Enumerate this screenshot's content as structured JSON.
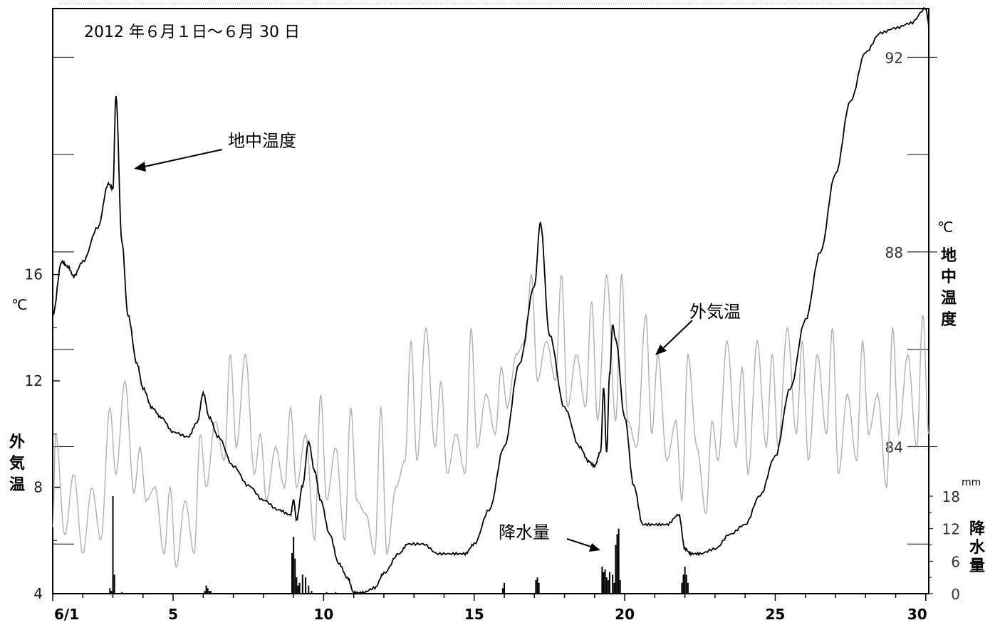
{
  "chart_data": {
    "type": "line",
    "title": "",
    "period_label": "2012 年６月１日～６月 30 日",
    "x_axis": {
      "ticks": [
        {
          "day": 1,
          "label": "6/1"
        },
        {
          "day": 5,
          "label": "5"
        },
        {
          "day": 10,
          "label": "10"
        },
        {
          "day": 15,
          "label": "15"
        },
        {
          "day": 20,
          "label": "20"
        },
        {
          "day": 25,
          "label": "25"
        },
        {
          "day": 30,
          "label": "30"
        }
      ],
      "xlim": [
        1,
        30.1
      ]
    },
    "y_left": {
      "label": "外気温",
      "unit": "℃",
      "ylim": [
        4,
        26
      ],
      "ticks": [
        4,
        8,
        12,
        16
      ]
    },
    "y_right_temp": {
      "label": "地中温度",
      "unit": "℃",
      "ylim": [
        80.98,
        93.0
      ],
      "ticks": [
        84,
        88,
        92
      ]
    },
    "y_right_precip": {
      "label": "降水量",
      "unit": "mm",
      "ylim": [
        0,
        18
      ],
      "ticks": [
        0,
        6,
        12,
        18
      ]
    },
    "series": [
      {
        "name": "地中温度",
        "axis": "right_temp",
        "color": "#000000",
        "x": [
          1.0,
          1.3,
          1.5,
          1.7,
          2.0,
          2.5,
          2.85,
          3.0,
          3.1,
          3.3,
          3.5,
          3.8,
          4.0,
          4.3,
          4.6,
          5.0,
          5.5,
          5.8,
          6.0,
          6.2,
          6.5,
          7.0,
          7.5,
          8.0,
          8.5,
          8.9,
          9.0,
          9.1,
          9.3,
          9.5,
          9.7,
          9.9,
          10.2,
          10.5,
          10.8,
          11.0,
          11.3,
          11.7,
          12.0,
          12.5,
          12.8,
          13.3,
          13.8,
          14.3,
          14.7,
          15.0,
          15.5,
          16.0,
          16.5,
          17.0,
          17.2,
          17.5,
          18.0,
          18.5,
          18.8,
          19.0,
          19.2,
          19.3,
          19.4,
          19.5,
          19.6,
          19.7,
          20.0,
          20.3,
          20.6,
          21.0,
          21.4,
          21.8,
          22.0,
          22.2,
          22.5,
          23.0,
          23.5,
          24.0,
          24.5,
          25.0,
          25.5,
          26.0,
          26.5,
          27.0,
          27.5,
          28.0,
          28.5,
          29.0,
          29.5,
          30.0,
          30.1
        ],
        "values": [
          86.7,
          87.8,
          87.7,
          87.5,
          87.8,
          88.5,
          89.4,
          89.3,
          91.2,
          88.2,
          86.7,
          85.7,
          85.2,
          84.8,
          84.6,
          84.3,
          84.2,
          84.5,
          85.1,
          84.6,
          84.2,
          83.6,
          83.2,
          82.9,
          82.7,
          82.6,
          82.9,
          82.5,
          83.2,
          84.1,
          83.5,
          82.9,
          82.2,
          81.6,
          81.3,
          81.0,
          81.0,
          81.1,
          81.4,
          81.8,
          82.0,
          82.0,
          81.8,
          81.8,
          81.8,
          82.0,
          82.7,
          84.0,
          85.7,
          87.3,
          88.6,
          86.3,
          84.8,
          84.0,
          83.7,
          83.6,
          83.9,
          85.2,
          83.9,
          85.5,
          86.5,
          86.2,
          84.6,
          83.2,
          82.4,
          82.4,
          82.4,
          82.6,
          81.9,
          81.8,
          81.8,
          81.9,
          82.2,
          82.4,
          83.0,
          83.8,
          85.2,
          86.6,
          88.0,
          89.6,
          91.1,
          92.1,
          92.5,
          92.6,
          92.7,
          93.0,
          92.7
        ]
      },
      {
        "name": "外気温",
        "axis": "left",
        "color": "#b0b0b0",
        "x": [
          1.0,
          1.1,
          1.4,
          1.7,
          2.0,
          2.3,
          2.6,
          2.9,
          3.1,
          3.4,
          3.7,
          3.9,
          4.1,
          4.4,
          4.7,
          4.9,
          5.1,
          5.4,
          5.7,
          5.9,
          6.1,
          6.4,
          6.7,
          6.9,
          7.1,
          7.4,
          7.7,
          7.9,
          8.1,
          8.4,
          8.7,
          8.9,
          9.1,
          9.4,
          9.7,
          9.9,
          10.1,
          10.4,
          10.7,
          10.9,
          11.1,
          11.4,
          11.7,
          11.9,
          12.1,
          12.4,
          12.7,
          12.9,
          13.1,
          13.4,
          13.7,
          13.9,
          14.1,
          14.4,
          14.7,
          14.9,
          15.1,
          15.4,
          15.7,
          15.9,
          16.1,
          16.4,
          16.7,
          16.9,
          17.1,
          17.4,
          17.7,
          17.9,
          18.1,
          18.4,
          18.7,
          18.9,
          19.1,
          19.4,
          19.7,
          19.9,
          20.1,
          20.4,
          20.7,
          20.9,
          21.1,
          21.4,
          21.7,
          21.9,
          22.1,
          22.4,
          22.7,
          22.9,
          23.1,
          23.4,
          23.7,
          23.9,
          24.1,
          24.4,
          24.7,
          24.9,
          25.1,
          25.4,
          25.7,
          25.9,
          26.1,
          26.4,
          26.7,
          26.9,
          27.1,
          27.4,
          27.7,
          27.9,
          28.1,
          28.4,
          28.7,
          28.9,
          29.1,
          29.4,
          29.7,
          29.9,
          30.1
        ],
        "values": [
          6.5,
          10.0,
          6.2,
          8.5,
          5.5,
          8.0,
          6.0,
          11.0,
          8.5,
          12.0,
          7.8,
          9.5,
          7.5,
          8.0,
          5.5,
          8.0,
          5.0,
          7.5,
          5.5,
          10.0,
          8.0,
          10.5,
          9.0,
          13.0,
          9.5,
          13.0,
          8.5,
          10.0,
          7.5,
          9.5,
          8.0,
          11.0,
          8.0,
          10.0,
          6.0,
          11.5,
          7.5,
          9.5,
          6.0,
          11.0,
          7.5,
          7.0,
          5.5,
          11.0,
          5.5,
          8.0,
          9.0,
          13.5,
          9.0,
          14.0,
          9.5,
          12.0,
          8.5,
          10.0,
          8.5,
          14.0,
          9.5,
          11.5,
          10.0,
          12.5,
          11.0,
          13.0,
          13.5,
          16.0,
          12.0,
          13.5,
          12.0,
          16.0,
          11.0,
          13.0,
          11.0,
          15.0,
          10.5,
          16.0,
          10.5,
          16.0,
          10.5,
          9.5,
          14.5,
          10.0,
          13.0,
          9.0,
          10.5,
          7.5,
          13.0,
          9.5,
          7.0,
          10.5,
          9.0,
          13.5,
          9.5,
          12.5,
          8.5,
          13.5,
          9.5,
          13.0,
          9.5,
          14.0,
          10.0,
          13.5,
          9.0,
          13.0,
          10.0,
          14.0,
          8.5,
          11.5,
          9.0,
          13.5,
          10.0,
          11.5,
          8.0,
          14.0,
          10.0,
          13.0,
          9.5,
          14.5,
          10.0
        ]
      },
      {
        "name": "降水量",
        "axis": "right_precip",
        "color": "#000000",
        "type": "bar",
        "x": [
          2.9,
          2.95,
          3.0,
          3.05,
          3.3,
          6.05,
          6.1,
          6.15,
          6.2,
          6.25,
          8.95,
          9.0,
          9.05,
          9.1,
          9.15,
          9.2,
          9.3,
          9.4,
          9.5,
          9.6,
          10.1,
          10.4,
          15.95,
          16.0,
          17.05,
          17.1,
          17.15,
          19.25,
          19.3,
          19.35,
          19.4,
          19.45,
          19.5,
          19.6,
          19.65,
          19.7,
          19.75,
          19.8,
          19.85,
          21.9,
          21.95,
          22.0,
          22.05,
          22.1
        ],
        "values": [
          1.0,
          0.5,
          18.0,
          3.5,
          0.3,
          0.5,
          1.5,
          1.0,
          0.5,
          0.5,
          7.5,
          10.5,
          6.5,
          3.0,
          1.5,
          2.0,
          3.5,
          3.0,
          1.5,
          0.5,
          0.3,
          0.3,
          1.0,
          2.0,
          2.5,
          3.0,
          2.0,
          5.0,
          4.0,
          4.5,
          3.0,
          2.5,
          4.0,
          3.5,
          2.0,
          9.0,
          11.0,
          12.0,
          2.5,
          2.0,
          3.5,
          5.0,
          3.5,
          2.0
        ]
      }
    ],
    "annotations": [
      {
        "text": "地中温度"
      },
      {
        "text": "外気温"
      },
      {
        "text": "降水量"
      }
    ]
  }
}
